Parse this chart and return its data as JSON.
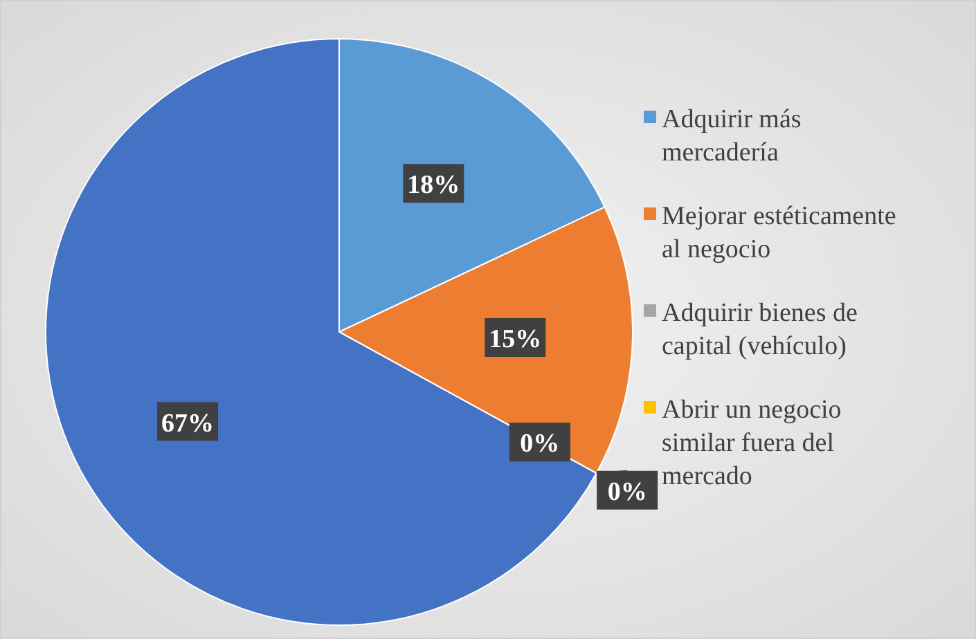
{
  "chart_data": {
    "type": "pie",
    "categories": [
      "Adquirir más mercadería",
      "Mejorar estéticamente al negocio",
      "Adquirir bienes de capital (vehículo)",
      "Abrir un negocio similar fuera del mercado",
      null
    ],
    "values": [
      18,
      15,
      0,
      0,
      67
    ],
    "colors": [
      "#5b9bd5",
      "#ed7d31",
      "#a5a5a5",
      "#ffc000",
      "#4472c4"
    ],
    "value_labels": [
      "18%",
      "15%",
      "0%",
      "0%",
      "67%"
    ],
    "legend": "right"
  }
}
